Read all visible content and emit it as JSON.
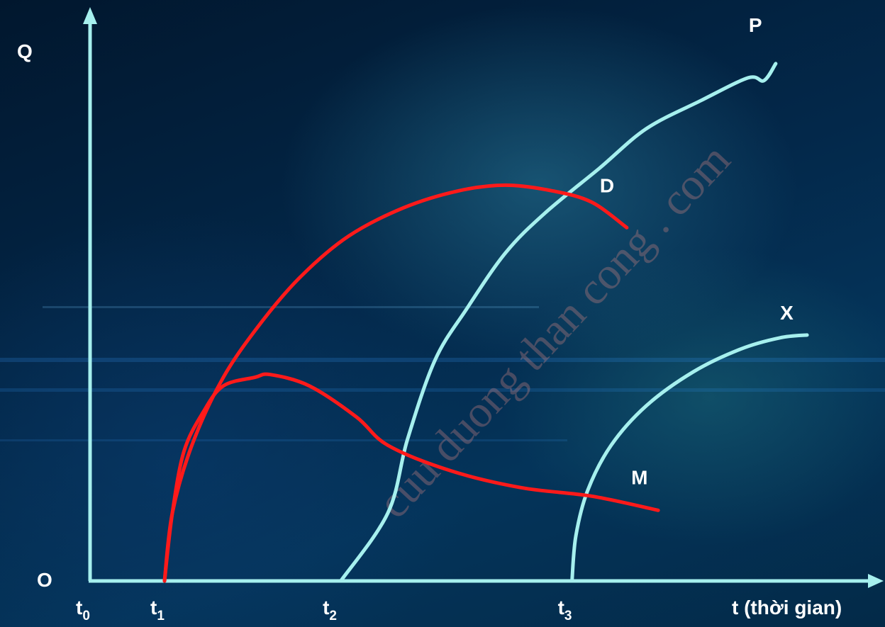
{
  "chart_data": {
    "type": "line",
    "ylabel": "Q",
    "xlabel": "t (thời gian)",
    "origin_label": "O",
    "xlim": [
      0,
      100
    ],
    "ylim": [
      0,
      100
    ],
    "ticks": [
      {
        "main": "t",
        "sub": "0",
        "x": 0
      },
      {
        "main": "t",
        "sub": "1",
        "x": 9.5
      },
      {
        "main": "t",
        "sub": "2",
        "x": 31.5
      },
      {
        "main": "t",
        "sub": "3",
        "x": 61.5
      }
    ],
    "series": [
      {
        "name": "P",
        "color": "#a6f0ee",
        "points": [
          [
            32,
            0
          ],
          [
            38,
            12
          ],
          [
            40.5,
            25
          ],
          [
            44,
            39
          ],
          [
            48,
            48
          ],
          [
            53,
            58
          ],
          [
            58,
            65
          ],
          [
            65,
            73
          ],
          [
            71,
            80
          ],
          [
            78,
            85
          ],
          [
            84,
            89
          ],
          [
            86,
            88.5
          ],
          [
            87.5,
            91.5
          ]
        ]
      },
      {
        "name": "D",
        "color": "#ff1a1a",
        "points": [
          [
            9.5,
            0
          ],
          [
            10.5,
            12
          ],
          [
            13,
            24
          ],
          [
            17,
            36
          ],
          [
            22,
            46
          ],
          [
            27,
            54
          ],
          [
            33,
            61
          ],
          [
            40,
            66
          ],
          [
            47,
            69
          ],
          [
            53,
            70
          ],
          [
            59,
            69
          ],
          [
            64,
            67
          ],
          [
            68.5,
            62.5
          ]
        ]
      },
      {
        "name": "X",
        "color": "#a6f0ee",
        "points": [
          [
            61.5,
            0
          ],
          [
            62,
            8
          ],
          [
            63.5,
            16
          ],
          [
            66.5,
            24
          ],
          [
            71,
            31
          ],
          [
            77,
            37
          ],
          [
            83,
            41
          ],
          [
            88,
            43
          ],
          [
            91.5,
            43.5
          ]
        ]
      },
      {
        "name": "M",
        "color": "#ff1a1a",
        "points": [
          [
            9.5,
            0
          ],
          [
            10.5,
            12
          ],
          [
            12,
            23
          ],
          [
            14.5,
            30
          ],
          [
            17,
            34.5
          ],
          [
            21,
            36
          ],
          [
            23,
            36.5
          ],
          [
            28,
            34.5
          ],
          [
            34,
            29
          ],
          [
            38,
            24
          ],
          [
            46,
            19.5
          ],
          [
            55,
            16.5
          ],
          [
            64,
            15
          ],
          [
            72.5,
            12.5
          ]
        ]
      }
    ],
    "watermark": "cuu duong than cong . com"
  }
}
